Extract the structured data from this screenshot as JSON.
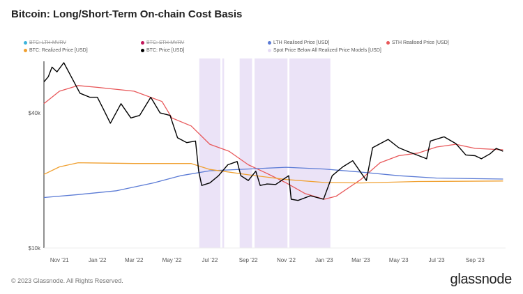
{
  "title": "Bitcoin: Long/Short-Term On-chain Cost Basis",
  "footer": "© 2023 Glassnode. All Rights Reserved.",
  "brand": "glassnode",
  "legend": [
    {
      "label": "BTC: LTH-MVRV",
      "color": "#3cb4dc",
      "hidden": true
    },
    {
      "label": "BTC: STH-MVRV",
      "color": "#c2185b",
      "hidden": true
    },
    {
      "label": "LTH Realised Price [USD]",
      "color": "#5b7bd5",
      "hidden": false
    },
    {
      "label": "STH Realised Price [USD]",
      "color": "#e8585a",
      "hidden": false
    },
    {
      "label": "BTC: Realized Price [USD]",
      "color": "#f0a030",
      "hidden": false
    },
    {
      "label": "BTC: Price [USD]",
      "color": "#000000",
      "hidden": false
    },
    {
      "label": "Spot Price Below All Realized Price Models [USD]",
      "color": "#e6dcf5",
      "hidden": false
    }
  ],
  "chart_data": {
    "type": "line",
    "title": "Bitcoin: Long/Short-Term On-chain Cost Basis",
    "yscale": "log",
    "ylim": [
      10000,
      70000
    ],
    "xlim": [
      "2021-10-07",
      "2023-10-20"
    ],
    "y_ticks": [
      {
        "value": 10000,
        "label": "$10k"
      },
      {
        "value": 40000,
        "label": "$40k"
      }
    ],
    "x_ticks": [
      {
        "date": "2021-11-01",
        "label": "Nov '21"
      },
      {
        "date": "2022-01-01",
        "label": "Jan '22"
      },
      {
        "date": "2022-03-01",
        "label": "Mar '22"
      },
      {
        "date": "2022-05-01",
        "label": "May '22"
      },
      {
        "date": "2022-07-01",
        "label": "Jul '22"
      },
      {
        "date": "2022-09-01",
        "label": "Sep '22"
      },
      {
        "date": "2022-11-01",
        "label": "Nov '22"
      },
      {
        "date": "2023-01-01",
        "label": "Jan '23"
      },
      {
        "date": "2023-03-01",
        "label": "Mar '23"
      },
      {
        "date": "2023-05-01",
        "label": "May '23"
      },
      {
        "date": "2023-07-01",
        "label": "Jul '23"
      },
      {
        "date": "2023-09-01",
        "label": "Sep '23"
      }
    ],
    "series": [
      {
        "name": "BTC: Price [USD]",
        "color": "#000000",
        "points": [
          [
            "2021-10-07",
            55000
          ],
          [
            "2021-10-14",
            58000
          ],
          [
            "2021-10-20",
            64000
          ],
          [
            "2021-10-28",
            61000
          ],
          [
            "2021-11-08",
            67000
          ],
          [
            "2021-11-20",
            58000
          ],
          [
            "2021-12-04",
            49000
          ],
          [
            "2021-12-20",
            47000
          ],
          [
            "2022-01-01",
            47000
          ],
          [
            "2022-01-10",
            42000
          ],
          [
            "2022-01-22",
            36000
          ],
          [
            "2022-02-08",
            44000
          ],
          [
            "2022-02-24",
            38000
          ],
          [
            "2022-03-10",
            39000
          ],
          [
            "2022-03-28",
            47000
          ],
          [
            "2022-04-12",
            40000
          ],
          [
            "2022-04-28",
            39000
          ],
          [
            "2022-05-10",
            31000
          ],
          [
            "2022-05-25",
            29500
          ],
          [
            "2022-06-08",
            30000
          ],
          [
            "2022-06-13",
            22000
          ],
          [
            "2022-06-18",
            19000
          ],
          [
            "2022-07-01",
            19500
          ],
          [
            "2022-07-15",
            21000
          ],
          [
            "2022-07-30",
            23500
          ],
          [
            "2022-08-14",
            24300
          ],
          [
            "2022-08-20",
            21000
          ],
          [
            "2022-09-01",
            20000
          ],
          [
            "2022-09-13",
            22000
          ],
          [
            "2022-09-20",
            19000
          ],
          [
            "2022-10-01",
            19300
          ],
          [
            "2022-10-15",
            19200
          ],
          [
            "2022-11-05",
            21000
          ],
          [
            "2022-11-09",
            16500
          ],
          [
            "2022-11-20",
            16300
          ],
          [
            "2022-12-10",
            17100
          ],
          [
            "2022-12-31",
            16500
          ],
          [
            "2023-01-14",
            21000
          ],
          [
            "2023-01-31",
            23000
          ],
          [
            "2023-02-16",
            24500
          ],
          [
            "2023-03-10",
            20000
          ],
          [
            "2023-03-20",
            28000
          ],
          [
            "2023-04-14",
            30500
          ],
          [
            "2023-05-01",
            28000
          ],
          [
            "2023-05-15",
            27000
          ],
          [
            "2023-06-15",
            25000
          ],
          [
            "2023-06-21",
            30000
          ],
          [
            "2023-07-13",
            31300
          ],
          [
            "2023-08-01",
            29200
          ],
          [
            "2023-08-17",
            26000
          ],
          [
            "2023-09-01",
            25800
          ],
          [
            "2023-09-11",
            25000
          ],
          [
            "2023-09-25",
            26300
          ],
          [
            "2023-10-05",
            27800
          ],
          [
            "2023-10-16",
            27000
          ]
        ]
      },
      {
        "name": "STH Realised Price [USD]",
        "color": "#e8585a",
        "points": [
          [
            "2021-10-07",
            44000
          ],
          [
            "2021-11-01",
            50000
          ],
          [
            "2021-12-01",
            53000
          ],
          [
            "2022-01-01",
            52000
          ],
          [
            "2022-03-01",
            50000
          ],
          [
            "2022-04-15",
            45000
          ],
          [
            "2022-05-01",
            38000
          ],
          [
            "2022-06-01",
            35000
          ],
          [
            "2022-07-01",
            29000
          ],
          [
            "2022-08-01",
            27000
          ],
          [
            "2022-09-01",
            23500
          ],
          [
            "2022-10-01",
            21500
          ],
          [
            "2022-11-01",
            19500
          ],
          [
            "2022-12-01",
            17500
          ],
          [
            "2023-01-01",
            16500
          ],
          [
            "2023-01-20",
            17000
          ],
          [
            "2023-03-01",
            20200
          ],
          [
            "2023-04-01",
            24000
          ],
          [
            "2023-05-01",
            25800
          ],
          [
            "2023-06-01",
            26500
          ],
          [
            "2023-07-01",
            28200
          ],
          [
            "2023-08-01",
            29000
          ],
          [
            "2023-09-01",
            27800
          ],
          [
            "2023-10-16",
            27400
          ]
        ]
      },
      {
        "name": "LTH Realised Price [USD]",
        "color": "#5b7bd5",
        "points": [
          [
            "2021-10-07",
            16800
          ],
          [
            "2021-12-01",
            17300
          ],
          [
            "2022-02-01",
            18000
          ],
          [
            "2022-04-01",
            19500
          ],
          [
            "2022-05-15",
            21000
          ],
          [
            "2022-07-01",
            22100
          ],
          [
            "2022-09-01",
            22500
          ],
          [
            "2022-11-01",
            22900
          ],
          [
            "2023-01-01",
            22500
          ],
          [
            "2023-03-01",
            21800
          ],
          [
            "2023-05-01",
            21000
          ],
          [
            "2023-07-01",
            20500
          ],
          [
            "2023-10-16",
            20300
          ]
        ]
      },
      {
        "name": "BTC: Realized Price [USD]",
        "color": "#f0a030",
        "points": [
          [
            "2021-10-07",
            21300
          ],
          [
            "2021-11-01",
            23000
          ],
          [
            "2021-12-01",
            24000
          ],
          [
            "2022-03-01",
            23800
          ],
          [
            "2022-06-01",
            23800
          ],
          [
            "2022-07-01",
            22400
          ],
          [
            "2022-09-01",
            21200
          ],
          [
            "2022-11-01",
            20200
          ],
          [
            "2023-01-01",
            19600
          ],
          [
            "2023-03-01",
            19500
          ],
          [
            "2023-06-01",
            19800
          ],
          [
            "2023-10-16",
            19900
          ]
        ]
      }
    ],
    "shaded_periods": {
      "name": "Spot Price Below All Realized Price Models [USD]",
      "color": "#e6dcf5",
      "ranges": [
        [
          "2022-06-14",
          "2022-07-18"
        ],
        [
          "2022-07-21",
          "2022-07-24"
        ],
        [
          "2022-08-18",
          "2022-09-07"
        ],
        [
          "2022-09-11",
          "2022-11-03"
        ],
        [
          "2022-11-06",
          "2023-01-11"
        ]
      ]
    }
  }
}
